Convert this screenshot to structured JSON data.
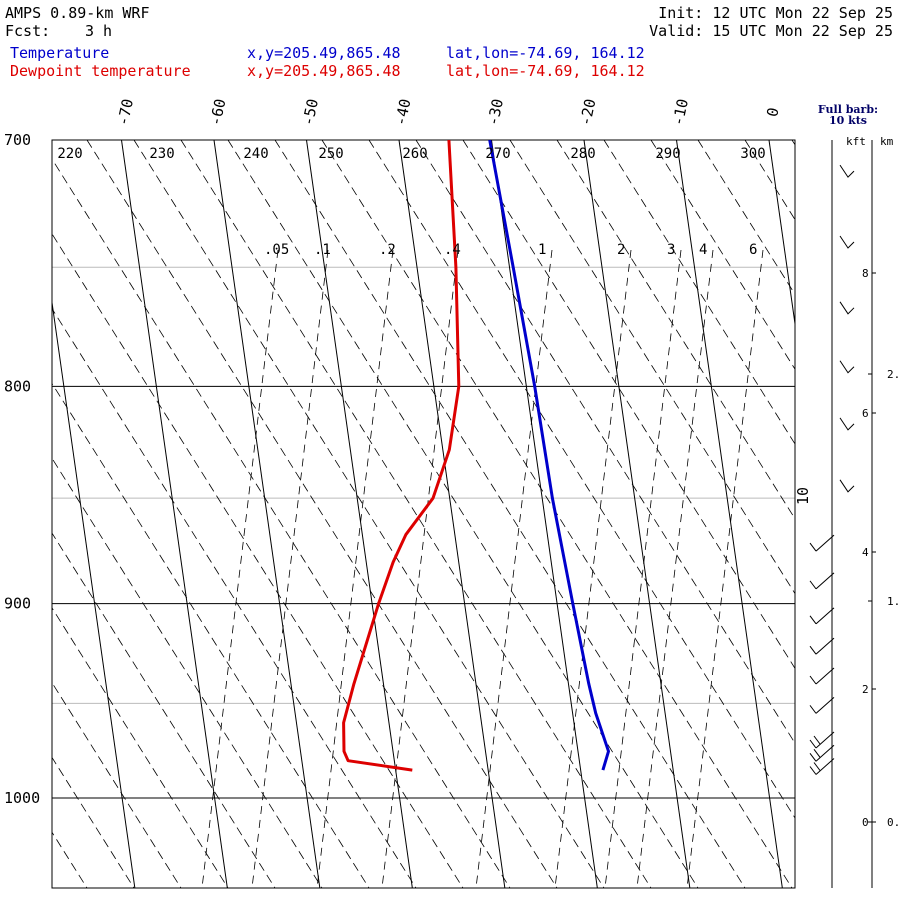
{
  "header": {
    "model": "AMPS 0.89-km WRF",
    "fcst_label": "Fcst:",
    "fcst_value": "3 h",
    "init": "Init: 12 UTC Mon 22 Sep 25",
    "valid": "Valid: 15 UTC Mon 22 Sep 25",
    "series1_label": "Temperature",
    "series1_xy": "x,y=205.49,865.48",
    "series1_latlon": "lat,lon=-74.69, 164.12",
    "series2_label": "Dewpoint temperature",
    "series2_xy": "x,y=205.49,865.48",
    "series2_latlon": "lat,lon=-74.69, 164.12"
  },
  "barb_note": {
    "line1": "Full barb:",
    "line2": "10 kts"
  },
  "axes": {
    "kft_label": "kft",
    "km_label": "km"
  },
  "colors": {
    "temperature": "#0000cc",
    "dewpoint": "#dd0000",
    "grid": "#000000",
    "light_grid": "#bbbbbb"
  },
  "chart_data": {
    "type": "line",
    "title": "Skew-T log-P sounding",
    "pressure_levels": [
      "700",
      "800",
      "900",
      "1000"
    ],
    "light_pressure_levels": [
      750,
      850,
      950
    ],
    "temperature_labels": [
      "-70",
      "-60",
      "-50",
      "-40",
      "-30",
      "-20",
      "-10",
      "0"
    ],
    "theta_labels": [
      "220",
      "230",
      "240",
      "250",
      "260",
      "270",
      "280",
      "290",
      "300"
    ],
    "mixing_ratio_labels": [
      ".05",
      ".1",
      ".2",
      ".4",
      "1",
      "2",
      "3",
      "4",
      "6"
    ],
    "wind_isotach_label": "10",
    "kft_ticks": [
      "8",
      "6",
      "4",
      "2",
      "0"
    ],
    "km_ticks": [
      "2.",
      "1.",
      "0."
    ],
    "ylim": [
      1040,
      700
    ],
    "series": [
      {
        "name": "Temperature",
        "points": [
          [
            700,
            -30.2
          ],
          [
            750,
            -29.6
          ],
          [
            800,
            -29.1
          ],
          [
            850,
            -28.9
          ],
          [
            900,
            -28.3
          ],
          [
            940,
            -27.8
          ],
          [
            955,
            -27.5
          ],
          [
            975,
            -26.7
          ],
          [
            985,
            -27.6
          ]
        ]
      },
      {
        "name": "Dewpoint temperature",
        "points": [
          [
            700,
            -34.6
          ],
          [
            750,
            -35.8
          ],
          [
            800,
            -37.3
          ],
          [
            828,
            -39.3
          ],
          [
            850,
            -41.8
          ],
          [
            867,
            -45.3
          ],
          [
            880,
            -47.1
          ],
          [
            900,
            -49.3
          ],
          [
            940,
            -53.2
          ],
          [
            960,
            -54.9
          ],
          [
            975,
            -55.3
          ],
          [
            980,
            -55.0
          ],
          [
            985,
            -48.2
          ]
        ]
      }
    ],
    "wind_barbs": [
      {
        "pressure": 715,
        "speed": 10
      },
      {
        "pressure": 743,
        "speed": 10
      },
      {
        "pressure": 770,
        "speed": 10
      },
      {
        "pressure": 795,
        "speed": 10
      },
      {
        "pressure": 820,
        "speed": 10
      },
      {
        "pressure": 848,
        "speed": 10
      },
      {
        "pressure": 870,
        "speed": 10
      },
      {
        "pressure": 888,
        "speed": 10
      },
      {
        "pressure": 905,
        "speed": 10
      },
      {
        "pressure": 920,
        "speed": 10
      },
      {
        "pressure": 935,
        "speed": 10
      },
      {
        "pressure": 950,
        "speed": 10
      },
      {
        "pressure": 968,
        "speed": 20
      },
      {
        "pressure": 975,
        "speed": 20
      },
      {
        "pressure": 982,
        "speed": 20
      }
    ]
  }
}
